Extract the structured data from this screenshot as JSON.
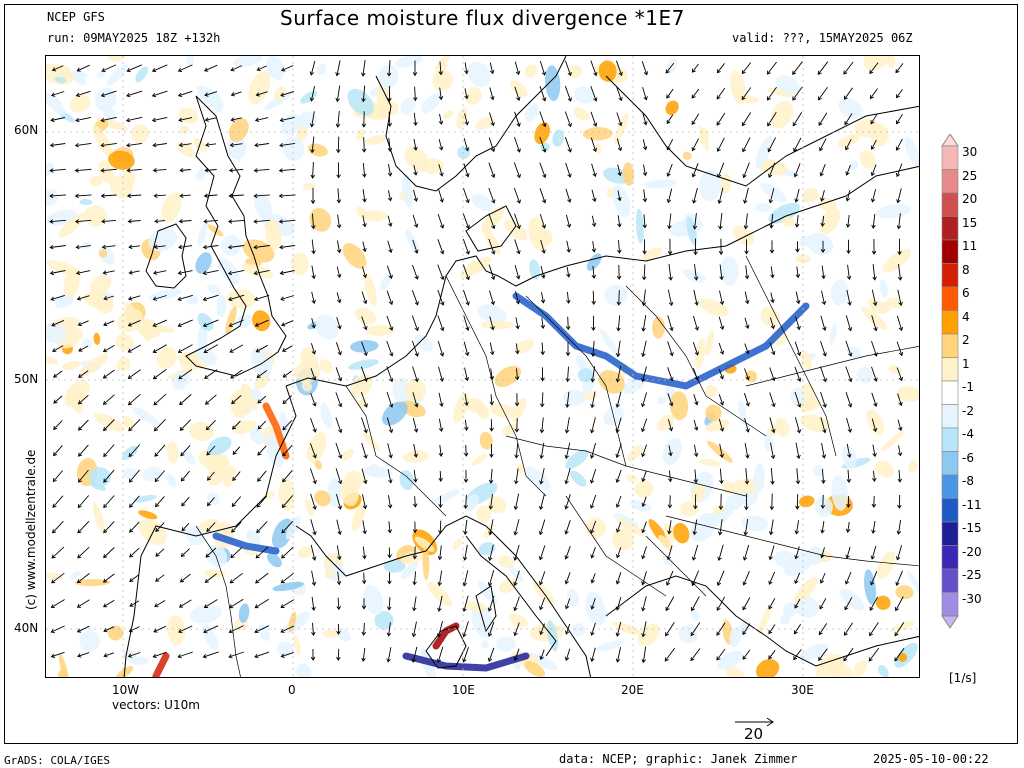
{
  "header": {
    "model": "NCEP GFS",
    "title": "Surface moisture flux divergence *1E7",
    "run": "run: 09MAY2025 18Z +132h",
    "valid": "valid: ???, 15MAY2025 06Z"
  },
  "axes": {
    "lat_labels": [
      "60N",
      "50N",
      "40N"
    ],
    "lon_labels": [
      "10W",
      "0",
      "10E",
      "20E",
      "30E"
    ]
  },
  "vectors_label": "vectors: U10m",
  "reference_vector": "20",
  "side_label": "(c) www.modellzentrale.de",
  "units": "[1/s]",
  "colorbar": {
    "labels": [
      "30",
      "25",
      "20",
      "15",
      "11",
      "8",
      "6",
      "4",
      "2",
      "1",
      "-1",
      "-2",
      "-4",
      "-6",
      "-8",
      "-11",
      "-15",
      "-20",
      "-25",
      "-30"
    ],
    "colors": [
      "#f4b8b8",
      "#e68a8a",
      "#d05050",
      "#b02020",
      "#a00000",
      "#d42000",
      "#ff5a00",
      "#ffa000",
      "#ffd47a",
      "#fff1c8",
      "#ffffff",
      "#e6f4ff",
      "#b8e6f8",
      "#8cc8f0",
      "#4a96e6",
      "#1e5ac8",
      "#1e1e96",
      "#3c28b4",
      "#6450c8",
      "#a08ce6"
    ],
    "top_color": "#fadcdc",
    "bottom_color": "#c8b4f0"
  },
  "footer": {
    "left": "GrADS: COLA/IGES",
    "middle": "data: NCEP; graphic: Janek Zimmer",
    "right": "2025-05-10-00:22"
  }
}
